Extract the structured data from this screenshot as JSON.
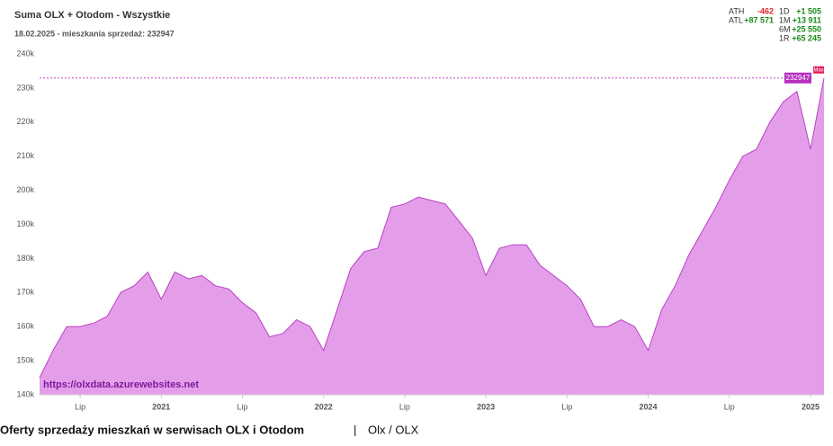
{
  "chart_data": {
    "type": "area",
    "title": "Suma OLX + Otodom - Wszystkie",
    "subtitle": "18.02.2025 - mieszkania sprzedaż: 232947",
    "watermark": "https://olxdata.azurewebsites.net",
    "max_label": "Max",
    "color": "#e49ee9",
    "line_color": "#bb3fc4",
    "categories": [
      null,
      null,
      null,
      "Lip",
      null,
      null,
      null,
      null,
      null,
      "2021",
      null,
      null,
      null,
      null,
      null,
      "Lip",
      null,
      null,
      null,
      null,
      null,
      "2022",
      null,
      null,
      null,
      null,
      null,
      "Lip",
      null,
      null,
      null,
      null,
      null,
      "2023",
      null,
      null,
      null,
      null,
      null,
      "Lip",
      null,
      null,
      null,
      null,
      null,
      "2024",
      null,
      null,
      null,
      null,
      null,
      "Lip",
      null,
      null,
      null,
      null,
      null,
      "2025",
      null
    ],
    "values": [
      145000,
      153000,
      160000,
      160000,
      161000,
      163000,
      170000,
      172000,
      176000,
      168000,
      176000,
      174000,
      175000,
      172000,
      171000,
      167000,
      164000,
      157000,
      158000,
      162000,
      160000,
      153000,
      165000,
      177000,
      182000,
      183000,
      195000,
      196000,
      198000,
      197000,
      196000,
      191000,
      186000,
      175000,
      183000,
      184000,
      184000,
      178000,
      175000,
      172000,
      168000,
      160000,
      160000,
      162000,
      160000,
      153000,
      165000,
      172000,
      181000,
      188000,
      195000,
      203000,
      210000,
      212000,
      220000,
      226000,
      229000,
      212000,
      232947
    ],
    "ylim": [
      140000,
      240000
    ],
    "yticks": [
      {
        "value": 140000,
        "label": "140k"
      },
      {
        "value": 150000,
        "label": "150k"
      },
      {
        "value": 160000,
        "label": "160k"
      },
      {
        "value": 170000,
        "label": "170k"
      },
      {
        "value": 180000,
        "label": "180k"
      },
      {
        "value": 190000,
        "label": "190k"
      },
      {
        "value": 200000,
        "label": "200k"
      },
      {
        "value": 210000,
        "label": "210k"
      },
      {
        "value": 220000,
        "label": "220k"
      },
      {
        "value": 230000,
        "label": "230k"
      },
      {
        "value": 240000,
        "label": "240k"
      }
    ],
    "grid": false
  },
  "stats": {
    "left": [
      {
        "label": "ATH",
        "value": "-462",
        "color": "#e0202a"
      },
      {
        "label": "ATL",
        "value": "+87 571",
        "color": "#1a8a1a"
      }
    ],
    "right": [
      {
        "label": "1D",
        "value": "+1 505",
        "color": "#1a8a1a"
      },
      {
        "label": "1M",
        "value": "+13 911",
        "color": "#1a8a1a"
      },
      {
        "label": "6M",
        "value": "+25 550",
        "color": "#1a8a1a"
      },
      {
        "label": "1R",
        "value": "+65 245",
        "color": "#1a8a1a"
      }
    ]
  },
  "caption": {
    "main": "Oferty sprzedaży mieszkań w serwisach OLX i Otodom",
    "separator": "|",
    "source": "Olx / OLX"
  }
}
